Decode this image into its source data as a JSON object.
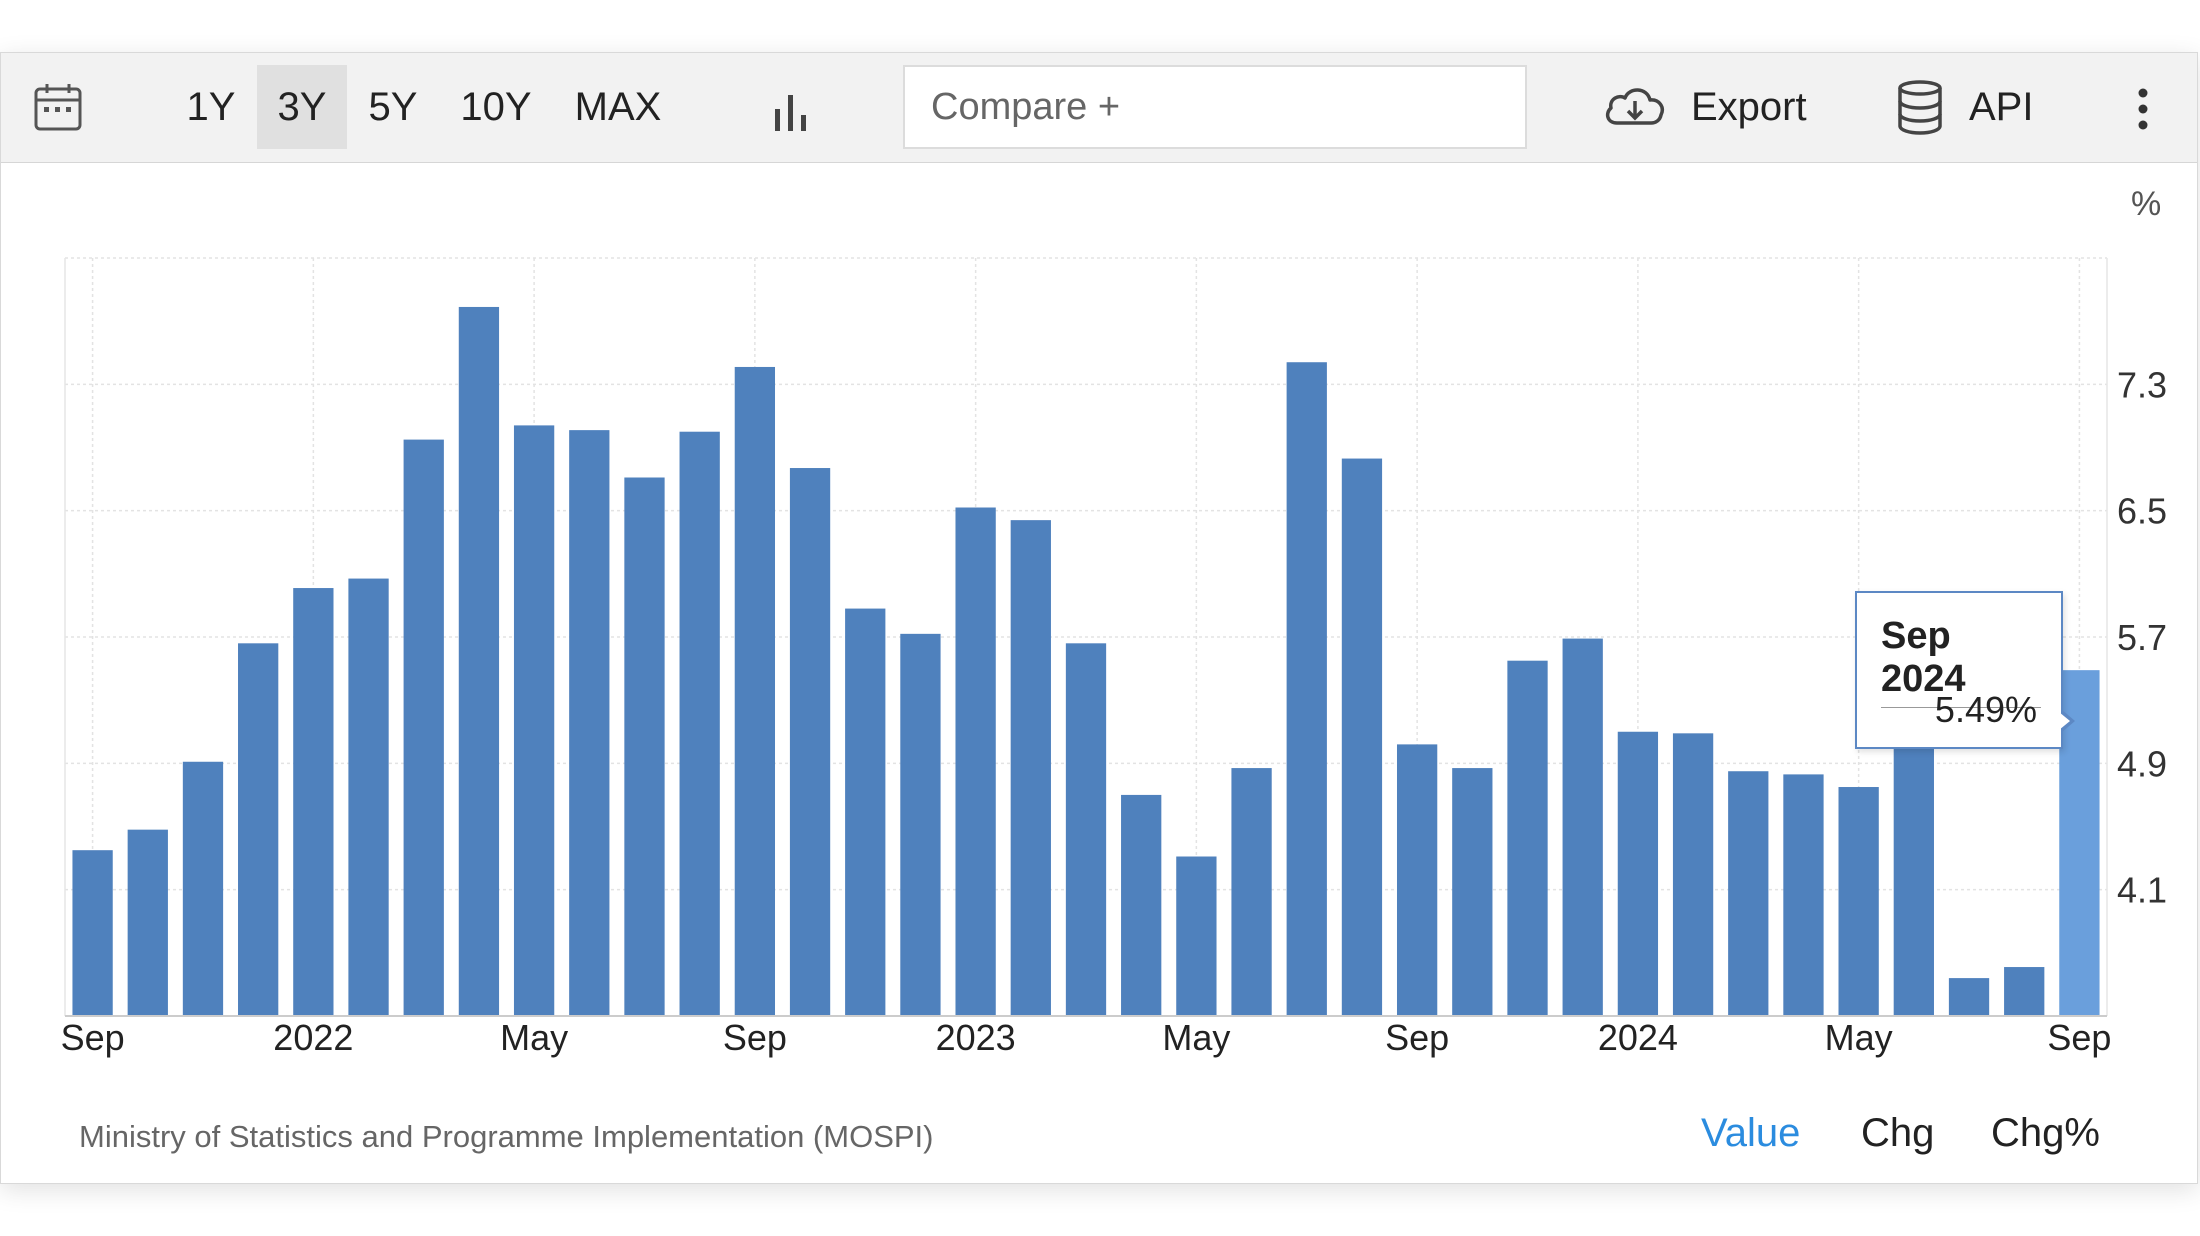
{
  "toolbar": {
    "ranges": [
      "1Y",
      "3Y",
      "5Y",
      "10Y",
      "MAX"
    ],
    "active_range": "3Y",
    "compare_placeholder": "Compare +",
    "export_label": "Export",
    "api_label": "API",
    "icons": [
      "calendar-icon",
      "bar-chart-icon",
      "cloud-download-icon",
      "database-icon",
      "more-vertical-icon"
    ]
  },
  "chart_data": {
    "type": "bar",
    "unit": "%",
    "x_tick_labels": [
      "Sep",
      "2022",
      "May",
      "Sep",
      "2023",
      "May",
      "Sep",
      "2024",
      "May",
      "Sep"
    ],
    "x_tick_category_index": [
      0,
      4,
      8,
      12,
      16,
      20,
      24,
      28,
      32,
      36
    ],
    "categories": [
      "Sep 2021",
      "Oct 2021",
      "Nov 2021",
      "Dec 2021",
      "Jan 2022",
      "Feb 2022",
      "Mar 2022",
      "Apr 2022",
      "May 2022",
      "Jun 2022",
      "Jul 2022",
      "Aug 2022",
      "Sep 2022",
      "Oct 2022",
      "Nov 2022",
      "Dec 2022",
      "Jan 2023",
      "Feb 2023",
      "Mar 2023",
      "Apr 2023",
      "May 2023",
      "Jun 2023",
      "Jul 2023",
      "Aug 2023",
      "Sep 2023",
      "Oct 2023",
      "Nov 2023",
      "Dec 2023",
      "Jan 2024",
      "Feb 2024",
      "Mar 2024",
      "Apr 2024",
      "May 2024",
      "Jun 2024",
      "Jul 2024",
      "Aug 2024",
      "Sep 2024"
    ],
    "values": [
      4.35,
      4.48,
      4.91,
      5.66,
      6.01,
      6.07,
      6.95,
      7.79,
      7.04,
      7.01,
      6.71,
      7.0,
      7.41,
      6.77,
      5.88,
      5.72,
      6.52,
      6.44,
      5.66,
      4.7,
      4.31,
      4.87,
      7.44,
      6.83,
      5.02,
      4.87,
      5.55,
      5.69,
      5.1,
      5.09,
      4.85,
      4.83,
      4.75,
      5.08,
      3.54,
      3.61,
      5.49
    ],
    "highlight_index": 36,
    "ylim": [
      3.3,
      8.1
    ],
    "y_ticks": [
      4.1,
      4.9,
      5.7,
      6.5,
      7.3
    ],
    "y_tick_labels": [
      "4.1",
      "4.9",
      "5.7",
      "6.5",
      "7.3"
    ],
    "grid": true,
    "colors": {
      "bar": "#4f81bd",
      "highlight": "#6a9fdc",
      "grid": "#e3e3e3"
    },
    "tooltip": {
      "title": "Sep 2024",
      "value": "5.49%"
    }
  },
  "footer": {
    "source": "Ministry of Statistics and Programme Implementation (MOSPI)",
    "tabs": [
      "Value",
      "Chg",
      "Chg%"
    ],
    "active_tab": "Value"
  }
}
